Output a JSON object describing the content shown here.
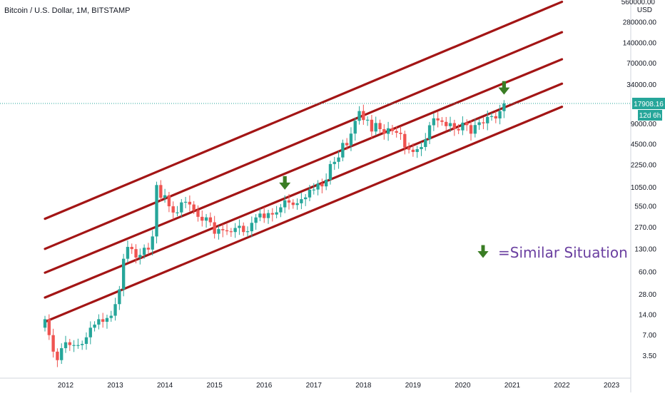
{
  "header": {
    "title": "Bitcoin / U.S. Dollar, 1M, BITSTAMP"
  },
  "axis": {
    "currency": "USD",
    "top_partial_label": "560000.00",
    "price_label": "17908.16",
    "countdown_label": "12d 6h"
  },
  "annotation": {
    "text": "=Similar Situation",
    "icon": "down-arrow-icon",
    "color": "#3a7d24"
  },
  "colors": {
    "up": "#26a69a",
    "down": "#ef5350",
    "channel": "#a31515",
    "price_line": "#26a69a",
    "annotation_text": "#6a3fa0",
    "arrow": "#3a7d24"
  },
  "chart_data": {
    "type": "candlestick",
    "scale": "log",
    "title": "Bitcoin / U.S. Dollar, 1M, BITSTAMP",
    "y_ticks": [
      "280000.00",
      "140000.00",
      "70000.00",
      "34000.00",
      "17908.16",
      "9000.00",
      "4500.00",
      "2250.00",
      "1050.00",
      "550.00",
      "270.00",
      "130.00",
      "60.00",
      "28.00",
      "14.00",
      "7.00",
      "3.50"
    ],
    "x_ticks": [
      "2012",
      "2013",
      "2014",
      "2015",
      "2016",
      "2017",
      "2018",
      "2019",
      "2020",
      "2021",
      "2022",
      "2023"
    ],
    "ylim": [
      2,
      600000
    ],
    "xlim": [
      "2011-07",
      "2023-10"
    ],
    "last_price": 17908.16,
    "channels": [
      {
        "start": [
          "2011-08",
          360
        ],
        "end": [
          "2022-01",
          560000
        ]
      },
      {
        "start": [
          "2011-08",
          130
        ],
        "end": [
          "2022-01",
          200000
        ]
      },
      {
        "start": [
          "2011-08",
          58
        ],
        "end": [
          "2022-01",
          80000
        ]
      },
      {
        "start": [
          "2011-08",
          25
        ],
        "end": [
          "2022-01",
          35000
        ]
      },
      {
        "start": [
          "2011-08",
          11
        ],
        "end": [
          "2022-01",
          16000
        ]
      }
    ],
    "arrows": [
      {
        "date": "2016-06",
        "price": 1200
      },
      {
        "date": "2020-11",
        "price": 30000
      }
    ],
    "candles_points": [
      [
        "2011-08",
        12
      ],
      [
        "2011-09",
        7
      ],
      [
        "2011-10",
        4
      ],
      [
        "2011-11",
        3
      ],
      [
        "2011-12",
        4.5
      ],
      [
        "2012-01",
        5.5
      ],
      [
        "2012-02",
        5
      ],
      [
        "2012-03",
        5
      ],
      [
        "2012-04",
        5
      ],
      [
        "2012-05",
        5.2
      ],
      [
        "2012-06",
        6.5
      ],
      [
        "2012-07",
        9
      ],
      [
        "2012-08",
        10
      ],
      [
        "2012-09",
        12
      ],
      [
        "2012-10",
        11
      ],
      [
        "2012-11",
        12.5
      ],
      [
        "2012-12",
        13.5
      ],
      [
        "2013-01",
        20
      ],
      [
        "2013-02",
        33
      ],
      [
        "2013-03",
        93
      ],
      [
        "2013-04",
        139
      ],
      [
        "2013-05",
        129
      ],
      [
        "2013-06",
        97
      ],
      [
        "2013-07",
        106
      ],
      [
        "2013-08",
        135
      ],
      [
        "2013-09",
        127
      ],
      [
        "2013-10",
        198
      ],
      [
        "2013-11",
        1130
      ],
      [
        "2013-12",
        732
      ],
      [
        "2014-01",
        800
      ],
      [
        "2014-02",
        550
      ],
      [
        "2014-03",
        445
      ],
      [
        "2014-04",
        447
      ],
      [
        "2014-05",
        628
      ],
      [
        "2014-06",
        640
      ],
      [
        "2014-07",
        585
      ],
      [
        "2014-08",
        480
      ],
      [
        "2014-09",
        385
      ],
      [
        "2014-10",
        338
      ],
      [
        "2014-11",
        378
      ],
      [
        "2014-12",
        320
      ],
      [
        "2015-01",
        217
      ],
      [
        "2015-02",
        254
      ],
      [
        "2015-03",
        244
      ],
      [
        "2015-04",
        236
      ],
      [
        "2015-05",
        230
      ],
      [
        "2015-06",
        264
      ],
      [
        "2015-07",
        284
      ],
      [
        "2015-08",
        230
      ],
      [
        "2015-09",
        236
      ],
      [
        "2015-10",
        314
      ],
      [
        "2015-11",
        377
      ],
      [
        "2015-12",
        430
      ],
      [
        "2016-01",
        369
      ],
      [
        "2016-02",
        437
      ],
      [
        "2016-03",
        416
      ],
      [
        "2016-04",
        448
      ],
      [
        "2016-05",
        531
      ],
      [
        "2016-06",
        673
      ],
      [
        "2016-07",
        624
      ],
      [
        "2016-08",
        575
      ],
      [
        "2016-09",
        609
      ],
      [
        "2016-10",
        700
      ],
      [
        "2016-11",
        742
      ],
      [
        "2016-12",
        963
      ],
      [
        "2017-01",
        970
      ],
      [
        "2017-02",
        1190
      ],
      [
        "2017-03",
        1080
      ],
      [
        "2017-04",
        1350
      ],
      [
        "2017-05",
        2300
      ],
      [
        "2017-06",
        2480
      ],
      [
        "2017-07",
        2875
      ],
      [
        "2017-08",
        4700
      ],
      [
        "2017-09",
        4340
      ],
      [
        "2017-10",
        6450
      ],
      [
        "2017-11",
        9950
      ],
      [
        "2017-12",
        13850
      ],
      [
        "2018-01",
        10220
      ],
      [
        "2018-02",
        10320
      ],
      [
        "2018-03",
        6925
      ],
      [
        "2018-04",
        9240
      ],
      [
        "2018-05",
        7500
      ],
      [
        "2018-06",
        6400
      ],
      [
        "2018-07",
        7730
      ],
      [
        "2018-08",
        7030
      ],
      [
        "2018-09",
        6630
      ],
      [
        "2018-10",
        6370
      ],
      [
        "2018-11",
        4040
      ],
      [
        "2018-12",
        3740
      ],
      [
        "2019-01",
        3460
      ],
      [
        "2019-02",
        3810
      ],
      [
        "2019-03",
        4100
      ],
      [
        "2019-04",
        5320
      ],
      [
        "2019-05",
        8560
      ],
      [
        "2019-06",
        10820
      ],
      [
        "2019-07",
        10080
      ],
      [
        "2019-08",
        9600
      ],
      [
        "2019-09",
        8300
      ],
      [
        "2019-10",
        9200
      ],
      [
        "2019-11",
        7560
      ],
      [
        "2019-12",
        7200
      ],
      [
        "2020-01",
        9350
      ],
      [
        "2020-02",
        8600
      ],
      [
        "2020-03",
        6430
      ],
      [
        "2020-04",
        8630
      ],
      [
        "2020-05",
        9450
      ],
      [
        "2020-06",
        9140
      ],
      [
        "2020-07",
        11350
      ],
      [
        "2020-08",
        11650
      ],
      [
        "2020-09",
        10780
      ],
      [
        "2020-10",
        13800
      ],
      [
        "2020-11",
        17908.16
      ]
    ]
  }
}
